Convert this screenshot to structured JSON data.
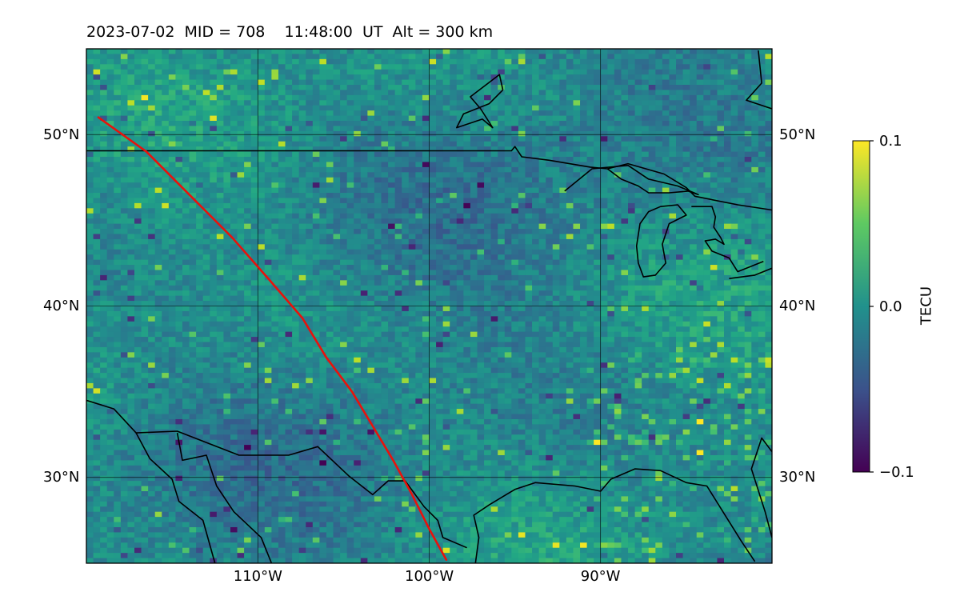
{
  "title": "2023-07-02  MID = 708    11:48:00  UT  Alt = 300 km",
  "map": {
    "projection": "plate-carree",
    "lon_range": [
      -120,
      -80
    ],
    "lat_range": [
      25,
      55
    ],
    "lat_ticks": [
      {
        "value": 50,
        "label": "50°N"
      },
      {
        "value": 40,
        "label": "40°N"
      },
      {
        "value": 30,
        "label": "30°N"
      }
    ],
    "lon_ticks": [
      {
        "value": -110,
        "label": "110°W"
      },
      {
        "value": -100,
        "label": "100°W"
      },
      {
        "value": -90,
        "label": "90°W"
      }
    ],
    "gridlines": true,
    "coastline_color": "#000000",
    "track_color": "#e8120c",
    "track_points": [
      [
        -119.3,
        51.0
      ],
      [
        -116.5,
        49.0
      ],
      [
        -114.0,
        46.5
      ],
      [
        -111.5,
        44.0
      ],
      [
        -109.3,
        41.5
      ],
      [
        -107.4,
        39.3
      ],
      [
        -106.0,
        37.0
      ],
      [
        -104.5,
        35.0
      ],
      [
        -103.3,
        33.0
      ],
      [
        -102.1,
        31.0
      ],
      [
        -101.0,
        29.0
      ],
      [
        -100.0,
        27.0
      ],
      [
        -99.0,
        25.2
      ]
    ]
  },
  "colorbar": {
    "label": "TECU",
    "colormap": "viridis",
    "min": -0.1,
    "max": 0.1,
    "ticks": [
      {
        "value": 0.1,
        "label": "0.1"
      },
      {
        "value": 0.0,
        "label": "0.0"
      },
      {
        "value": -0.1,
        "label": "−0.1"
      }
    ]
  }
}
